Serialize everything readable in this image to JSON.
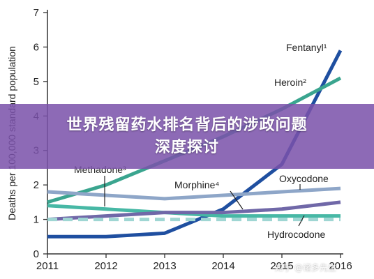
{
  "banner": {
    "line1": "世界残留药水排名背后的涉政问题",
    "line2": "深度探讨"
  },
  "watermark": "知乎 @诸多先生",
  "chart_data": {
    "type": "line",
    "title": "",
    "xlabel": "",
    "ylabel": "Deaths per 100,000 standard population",
    "x": [
      2011,
      2012,
      2013,
      2014,
      2015,
      2016
    ],
    "xlim": [
      2011,
      2016
    ],
    "ylim": [
      0,
      7
    ],
    "yticks": [
      0,
      1,
      2,
      3,
      4,
      5,
      6,
      7
    ],
    "grid": false,
    "series": [
      {
        "name": "Fentanyl¹",
        "color": "#1f4fa0",
        "dashed": false,
        "values": [
          0.5,
          0.5,
          0.6,
          1.3,
          2.6,
          5.9
        ]
      },
      {
        "name": "Heroin²",
        "color": "#3aa58f",
        "dashed": false,
        "values": [
          1.5,
          2.0,
          2.7,
          3.4,
          4.2,
          5.1
        ]
      },
      {
        "name": "Oxycodone",
        "color": "#8ea6c8",
        "dashed": false,
        "values": [
          1.8,
          1.7,
          1.6,
          1.7,
          1.8,
          1.9
        ]
      },
      {
        "name": "Methadone³",
        "color": "#47b8a5",
        "dashed": false,
        "values": [
          1.4,
          1.3,
          1.2,
          1.1,
          1.1,
          1.1
        ]
      },
      {
        "name": "Morphine⁴",
        "color": "#7068a8",
        "dashed": false,
        "values": [
          1.0,
          1.1,
          1.2,
          1.2,
          1.3,
          1.5
        ]
      },
      {
        "name": "Hydrocodone",
        "color": "#9fd6d3",
        "dashed": true,
        "values": [
          1.0,
          1.0,
          1.0,
          1.0,
          1.0,
          1.0
        ]
      }
    ]
  }
}
